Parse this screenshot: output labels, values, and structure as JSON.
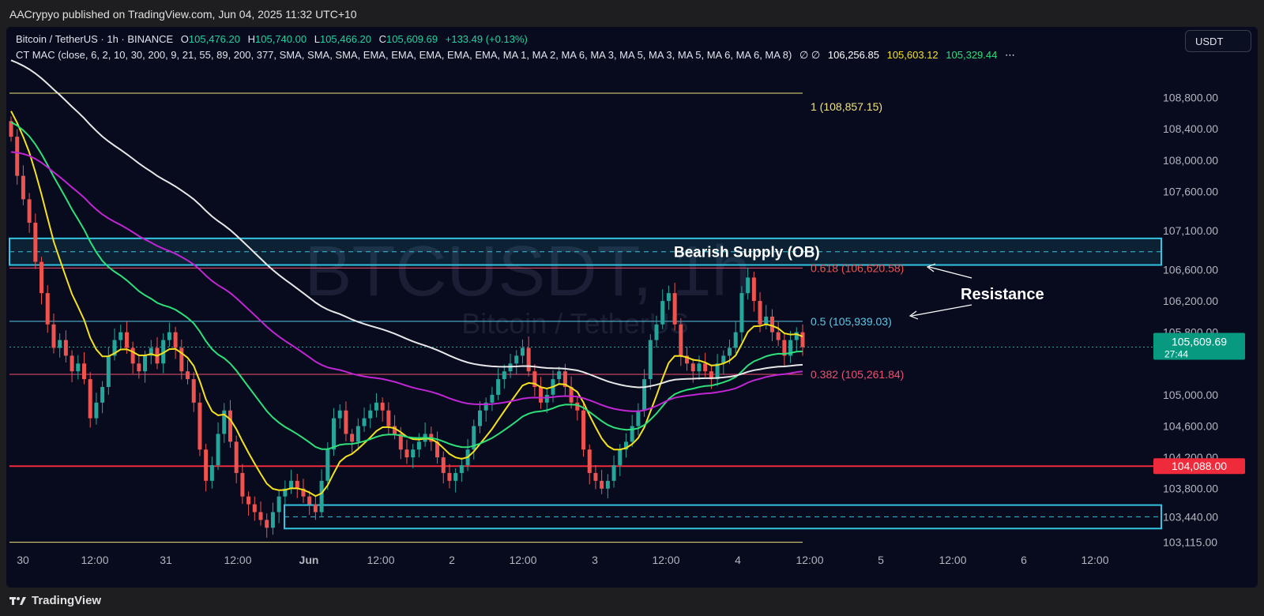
{
  "header": {
    "published": "AACrypyo published on TradingView.com, Jun 04, 2025 11:32 UTC+10"
  },
  "legend": {
    "symbol": "Bitcoin / TetherUS · 1h · BINANCE",
    "o_label": "O",
    "o_value": "105,476.20",
    "h_label": "H",
    "h_value": "105,740.00",
    "l_label": "L",
    "l_value": "105,466.20",
    "c_label": "C",
    "c_value": "105,609.69",
    "change": "+133.49 (+0.13%)",
    "indicator": "CT MAC (close, 6, 2, 10, 30, 200, 9, 21, 55, 89, 200, 377, SMA, SMA, SMA, EMA, EMA, EMA, EMA, EMA, MA 1, MA 2, MA 6, MA 3, MA 5, MA 3, MA 5, MA 6, MA 6, MA 8)",
    "ma_values": [
      "106,256.85",
      "105,603.12",
      "105,329.44"
    ],
    "null_sym": "∅ ∅",
    "more": "⋯"
  },
  "currency_button": "USDT",
  "footer": {
    "brand": "TradingView"
  },
  "colors": {
    "bg": "#070b1d",
    "up": "#26a69a",
    "down": "#ef5350",
    "ma200": "#e8e8e8",
    "ma_purple": "#c026d3",
    "ma_green": "#2ee07a",
    "ma_yellow": "#f5e11e",
    "zone": "#34c3e0",
    "support": "#ef2b3b"
  },
  "chart_data": {
    "type": "candlestick",
    "title": "BTCUSDT, 1h",
    "watermark_title": "BTCUSDT, 1h",
    "watermark_subtitle": "Bitcoin / TetherUS",
    "y_ticks": [
      "108,800.00",
      "108,400.00",
      "108,000.00",
      "107,600.00",
      "107,100.00",
      "106,600.00",
      "106,200.00",
      "105,800.00",
      "105,000.00",
      "104,600.00",
      "104,200.00",
      "103,800.00",
      "103,440.00",
      "103,115.00"
    ],
    "y_tick_values": [
      108800,
      108400,
      108000,
      107600,
      107100,
      106600,
      106200,
      105800,
      105000,
      104600,
      104200,
      103800,
      103440,
      103115
    ],
    "x_ticks": [
      "30",
      "12:00",
      "31",
      "12:00",
      "Jun",
      "12:00",
      "2",
      "12:00",
      "3",
      "12:00",
      "4",
      "12:00",
      "5",
      "12:00",
      "6",
      "12:00"
    ],
    "last_price": "105,609.69",
    "countdown": "27:44",
    "support_price": "104,088.00",
    "fib_levels": [
      {
        "label": "1 (108,857.15)",
        "value": 108857.15
      },
      {
        "label": "0.618 (106,620.58)",
        "value": 106620.58
      },
      {
        "label": "0.5 (105,939.03)",
        "value": 105939.03
      },
      {
        "label": "0.382 (105,261.84)",
        "value": 105261.84
      }
    ],
    "fib_bottom": 103115,
    "supply_zone": {
      "label": "Bearish Supply (OB)",
      "top": 107000,
      "mid": 106830,
      "bottom": 106660
    },
    "demand_zone": {
      "top": 103590,
      "mid": 103440,
      "bottom": 103290
    },
    "annotation": "Resistance",
    "closes": [
      108300,
      107800,
      107500,
      107200,
      106700,
      106300,
      105900,
      105600,
      105700,
      105500,
      105300,
      105400,
      105200,
      104700,
      104900,
      105100,
      105500,
      105700,
      105800,
      105600,
      105400,
      105300,
      105500,
      105600,
      105400,
      105700,
      105800,
      105600,
      105300,
      105200,
      104900,
      104300,
      103900,
      104100,
      104500,
      104800,
      104400,
      104000,
      103700,
      103600,
      103500,
      103400,
      103300,
      103500,
      103700,
      103800,
      103900,
      103800,
      103700,
      103600,
      103500,
      103900,
      104300,
      104700,
      104800,
      104500,
      104400,
      104600,
      104700,
      104800,
      104900,
      104800,
      104600,
      104500,
      104300,
      104200,
      104300,
      104400,
      104500,
      104400,
      104200,
      104000,
      103900,
      104000,
      104100,
      104300,
      104600,
      104800,
      104900,
      105000,
      105200,
      105300,
      105400,
      105500,
      105600,
      105300,
      105100,
      104900,
      105000,
      105200,
      105300,
      105100,
      104900,
      104800,
      104300,
      104000,
      103900,
      103800,
      103900,
      104100,
      104300,
      104400,
      104600,
      104800,
      105200,
      105700,
      105900,
      106200,
      106300,
      105900,
      105500,
      105400,
      105300,
      105400,
      105300,
      105200,
      105400,
      105500,
      105600,
      105800,
      106300,
      106500,
      106200,
      105900,
      106000,
      105800,
      105700,
      105500,
      105700,
      105800,
      105609
    ]
  }
}
